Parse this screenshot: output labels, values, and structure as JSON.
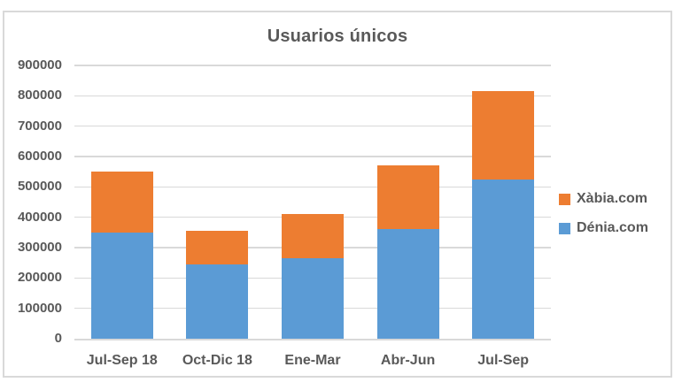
{
  "chart_data": {
    "type": "bar",
    "stacked": true,
    "title": "Usuarios únicos",
    "categories": [
      "Jul-Sep 18",
      "Oct-Dic 18",
      "Ene-Mar",
      "Abr-Jun",
      "Jul-Sep"
    ],
    "series": [
      {
        "name": "Xàbia.com",
        "color": "#ED7D31",
        "values": [
          200000,
          110000,
          145000,
          210000,
          290000
        ]
      },
      {
        "name": "Dénia.com",
        "color": "#5B9BD5",
        "values": [
          350000,
          245000,
          265000,
          360000,
          525000
        ]
      }
    ],
    "stack_order_bottom_to_top": [
      "Dénia.com",
      "Xàbia.com"
    ],
    "totals": [
      550000,
      355000,
      410000,
      570000,
      815000
    ],
    "xlabel": "",
    "ylabel": "",
    "ylim": [
      0,
      900000
    ],
    "ytick_step": 100000,
    "ytick_labels": [
      "0",
      "100000",
      "200000",
      "300000",
      "400000",
      "500000",
      "600000",
      "700000",
      "800000",
      "900000"
    ],
    "grid": true,
    "legend_position": "right",
    "colors": {
      "axis_text": "#595959",
      "title_text": "#595959",
      "gridline": "#D9D9D9",
      "frame_border": "#D9D9D9",
      "background": "#FFFFFF"
    }
  }
}
